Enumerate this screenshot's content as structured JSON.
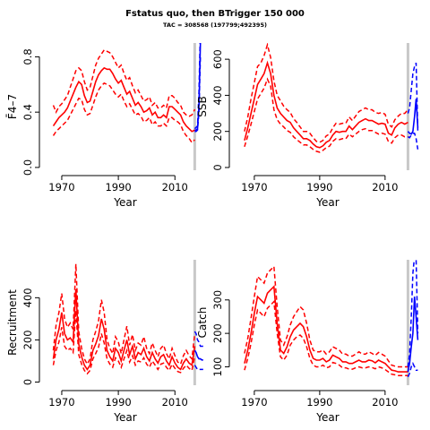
{
  "figure": {
    "title": "Fstatus quo, then BTrigger 150 000",
    "subtitle": "TAC = 308568 (197799;492395)"
  },
  "colors": {
    "historical": "#ff0000",
    "projection": "#0000ff",
    "divider": "#c8c8c8",
    "axis": "#000000"
  },
  "chart_data": [
    {
      "type": "line",
      "name": "fbar",
      "xlabel": "Year",
      "ylabel": "F̄4–7",
      "xlim": [
        1964,
        2021
      ],
      "ylim": [
        -0.02,
        0.9
      ],
      "xticks": [
        1970,
        1990,
        2010
      ],
      "yticks": [
        0.0,
        0.4,
        0.8
      ],
      "yticklabels": [
        "0.0",
        "0.4",
        "0.8"
      ],
      "divider_year": 2017,
      "historical": {
        "x": [
          1967,
          1968,
          1969,
          1970,
          1971,
          1972,
          1973,
          1974,
          1975,
          1976,
          1977,
          1978,
          1979,
          1980,
          1981,
          1982,
          1983,
          1984,
          1985,
          1986,
          1987,
          1988,
          1989,
          1990,
          1991,
          1992,
          1993,
          1994,
          1995,
          1996,
          1997,
          1998,
          1999,
          2000,
          2001,
          2002,
          2003,
          2004,
          2005,
          2006,
          2007,
          2008,
          2009,
          2010,
          2011,
          2012,
          2013,
          2014,
          2015,
          2016,
          2017
        ],
        "median": [
          0.3,
          0.33,
          0.36,
          0.38,
          0.4,
          0.43,
          0.48,
          0.53,
          0.58,
          0.62,
          0.6,
          0.52,
          0.47,
          0.48,
          0.55,
          0.62,
          0.67,
          0.7,
          0.72,
          0.71,
          0.71,
          0.68,
          0.64,
          0.61,
          0.63,
          0.58,
          0.53,
          0.55,
          0.5,
          0.45,
          0.47,
          0.44,
          0.4,
          0.41,
          0.43,
          0.38,
          0.4,
          0.36,
          0.36,
          0.38,
          0.36,
          0.44,
          0.44,
          0.42,
          0.4,
          0.38,
          0.33,
          0.3,
          0.28,
          0.26,
          0.27
        ],
        "low": [
          0.23,
          0.26,
          0.28,
          0.3,
          0.32,
          0.34,
          0.38,
          0.42,
          0.46,
          0.5,
          0.49,
          0.42,
          0.38,
          0.39,
          0.45,
          0.51,
          0.56,
          0.59,
          0.61,
          0.6,
          0.59,
          0.56,
          0.53,
          0.51,
          0.53,
          0.48,
          0.44,
          0.46,
          0.42,
          0.38,
          0.39,
          0.37,
          0.33,
          0.34,
          0.36,
          0.31,
          0.33,
          0.3,
          0.3,
          0.32,
          0.3,
          0.36,
          0.36,
          0.34,
          0.33,
          0.31,
          0.26,
          0.23,
          0.21,
          0.18,
          0.2
        ],
        "high": [
          0.45,
          0.4,
          0.44,
          0.46,
          0.49,
          0.52,
          0.58,
          0.64,
          0.7,
          0.72,
          0.7,
          0.62,
          0.56,
          0.58,
          0.66,
          0.74,
          0.79,
          0.82,
          0.85,
          0.84,
          0.83,
          0.8,
          0.76,
          0.72,
          0.74,
          0.68,
          0.63,
          0.65,
          0.59,
          0.54,
          0.56,
          0.52,
          0.48,
          0.49,
          0.51,
          0.45,
          0.47,
          0.43,
          0.43,
          0.45,
          0.43,
          0.52,
          0.52,
          0.5,
          0.47,
          0.45,
          0.4,
          0.38,
          0.37,
          0.38,
          0.42
        ]
      },
      "projection": {
        "x": [
          2017,
          2017.5,
          2018,
          2018.5,
          2019
        ],
        "median": [
          0.27,
          0.27,
          0.28,
          0.45,
          0.9
        ],
        "low": [
          0.26,
          0.26,
          0.27,
          0.4,
          0.8
        ],
        "high": [
          0.28,
          0.29,
          0.3,
          0.55,
          1.0
        ]
      }
    },
    {
      "type": "line",
      "name": "ssb",
      "xlabel": "Year",
      "ylabel": "SSB",
      "xlim": [
        1964,
        2021
      ],
      "ylim": [
        -15,
        690
      ],
      "xticks": [
        1970,
        1990,
        2010
      ],
      "yticks": [
        0,
        200,
        400,
        600
      ],
      "yticklabels": [
        "0",
        "200",
        "400",
        "600"
      ],
      "divider_year": 2017,
      "historical": {
        "x": [
          1967,
          1968,
          1969,
          1970,
          1971,
          1972,
          1973,
          1974,
          1975,
          1976,
          1977,
          1978,
          1979,
          1980,
          1981,
          1982,
          1983,
          1984,
          1985,
          1986,
          1987,
          1988,
          1989,
          1990,
          1991,
          1992,
          1993,
          1994,
          1995,
          1996,
          1997,
          1998,
          1999,
          2000,
          2001,
          2002,
          2003,
          2004,
          2005,
          2006,
          2007,
          2008,
          2009,
          2010,
          2011,
          2012,
          2013,
          2014,
          2015,
          2016,
          2017
        ],
        "median": [
          150,
          220,
          300,
          380,
          460,
          490,
          520,
          580,
          520,
          400,
          330,
          300,
          280,
          260,
          250,
          220,
          200,
          180,
          160,
          160,
          150,
          130,
          115,
          110,
          120,
          140,
          150,
          180,
          200,
          195,
          200,
          200,
          230,
          210,
          230,
          250,
          260,
          270,
          260,
          260,
          250,
          240,
          245,
          240,
          190,
          180,
          220,
          240,
          250,
          240,
          250
        ],
        "low": [
          115,
          175,
          240,
          310,
          380,
          410,
          440,
          490,
          450,
          320,
          265,
          240,
          225,
          205,
          195,
          170,
          155,
          140,
          125,
          125,
          115,
          100,
          90,
          85,
          95,
          110,
          118,
          145,
          160,
          155,
          160,
          160,
          185,
          170,
          185,
          200,
          210,
          215,
          205,
          205,
          195,
          185,
          190,
          185,
          145,
          135,
          165,
          180,
          180,
          170,
          170
        ],
        "high": [
          200,
          280,
          380,
          470,
          560,
          580,
          620,
          680,
          610,
          480,
          400,
          370,
          340,
          320,
          305,
          270,
          250,
          225,
          200,
          200,
          190,
          165,
          145,
          140,
          150,
          175,
          185,
          220,
          245,
          240,
          245,
          245,
          280,
          260,
          285,
          310,
          320,
          330,
          320,
          320,
          305,
          300,
          305,
          295,
          240,
          225,
          265,
          285,
          300,
          300,
          320
        ]
      },
      "projection": {
        "x": [
          2017,
          2017.5,
          2018,
          2018.5,
          2019,
          2019.5,
          2020
        ],
        "median": [
          200,
          190,
          185,
          200,
          280,
          380,
          220
        ],
        "low": [
          170,
          165,
          180,
          190,
          190,
          160,
          100
        ],
        "high": [
          300,
          330,
          430,
          520,
          560,
          580,
          200
        ]
      }
    },
    {
      "type": "line",
      "name": "recruitment",
      "xlabel": "Year",
      "ylabel": "Recruitment",
      "xlim": [
        1964,
        2021
      ],
      "ylim": [
        -15,
        580
      ],
      "xticks": [
        1970,
        1990,
        2010
      ],
      "yticks": [
        0,
        200,
        400
      ],
      "yticklabels": [
        "0",
        "200",
        "400"
      ],
      "divider_year": 2017,
      "historical": {
        "x": [
          1967,
          1968,
          1969,
          1970,
          1971,
          1972,
          1973,
          1974,
          1975,
          1976,
          1977,
          1978,
          1979,
          1980,
          1981,
          1982,
          1983,
          1984,
          1985,
          1986,
          1987,
          1988,
          1989,
          1990,
          1991,
          1992,
          1993,
          1994,
          1995,
          1996,
          1997,
          1998,
          1999,
          2000,
          2001,
          2002,
          2003,
          2004,
          2005,
          2006,
          2007,
          2008,
          2009,
          2010,
          2011,
          2012,
          2013,
          2014,
          2015,
          2016,
          2017
        ],
        "median": [
          110,
          200,
          250,
          330,
          230,
          200,
          210,
          190,
          440,
          180,
          120,
          80,
          60,
          80,
          150,
          180,
          220,
          300,
          250,
          150,
          120,
          100,
          160,
          140,
          100,
          150,
          200,
          130,
          170,
          110,
          140,
          130,
          160,
          120,
          100,
          140,
          110,
          90,
          120,
          130,
          100,
          80,
          120,
          90,
          70,
          60,
          90,
          110,
          90,
          80,
          170
        ],
        "low": [
          80,
          150,
          190,
          260,
          170,
          150,
          160,
          140,
          340,
          130,
          85,
          55,
          40,
          55,
          110,
          135,
          165,
          230,
          185,
          110,
          85,
          70,
          115,
          100,
          70,
          110,
          150,
          95,
          125,
          80,
          100,
          95,
          115,
          85,
          70,
          100,
          80,
          60,
          85,
          90,
          70,
          55,
          85,
          65,
          50,
          45,
          65,
          80,
          65,
          55,
          120
        ],
        "high": [
          150,
          270,
          330,
          420,
          300,
          260,
          280,
          250,
          560,
          240,
          160,
          110,
          85,
          110,
          200,
          240,
          290,
          390,
          330,
          200,
          160,
          135,
          215,
          190,
          135,
          200,
          265,
          175,
          225,
          150,
          185,
          175,
          215,
          160,
          135,
          185,
          150,
          120,
          160,
          175,
          135,
          110,
          160,
          125,
          95,
          85,
          125,
          150,
          125,
          110,
          230
        ]
      },
      "projection": {
        "x": [
          2017,
          2017.5,
          2018,
          2018.5,
          2019,
          2019.5,
          2020
        ],
        "median": [
          150,
          140,
          120,
          110,
          110,
          105,
          105
        ],
        "low": [
          80,
          70,
          60,
          60,
          60,
          60,
          60
        ],
        "high": [
          240,
          230,
          200,
          190,
          170,
          170,
          170
        ]
      }
    },
    {
      "type": "line",
      "name": "catch",
      "xlabel": "Year",
      "ylabel": "Catch",
      "xlim": [
        1964,
        2021
      ],
      "ylim": [
        45,
        420
      ],
      "xticks": [
        1970,
        1990,
        2010
      ],
      "yticks": [
        100,
        200,
        300
      ],
      "yticklabels": [
        "100",
        "200",
        "300"
      ],
      "divider_year": 2017,
      "historical": {
        "x": [
          1967,
          1968,
          1969,
          1970,
          1971,
          1972,
          1973,
          1974,
          1975,
          1976,
          1977,
          1978,
          1979,
          1980,
          1981,
          1982,
          1983,
          1984,
          1985,
          1986,
          1987,
          1988,
          1989,
          1990,
          1991,
          1992,
          1993,
          1994,
          1995,
          1996,
          1997,
          1998,
          1999,
          2000,
          2001,
          2002,
          2003,
          2004,
          2005,
          2006,
          2007,
          2008,
          2009,
          2010,
          2011,
          2012,
          2013,
          2014,
          2015,
          2016,
          2017
        ],
        "median": [
          110,
          150,
          200,
          260,
          310,
          300,
          290,
          320,
          330,
          340,
          230,
          150,
          140,
          160,
          190,
          210,
          220,
          230,
          220,
          190,
          150,
          125,
          120,
          120,
          125,
          115,
          120,
          135,
          130,
          125,
          115,
          115,
          110,
          110,
          115,
          120,
          115,
          115,
          120,
          118,
          112,
          120,
          115,
          110,
          100,
          90,
          88,
          85,
          85,
          85,
          85
        ],
        "low": [
          90,
          125,
          170,
          225,
          270,
          260,
          250,
          275,
          285,
          295,
          200,
          130,
          120,
          135,
          165,
          180,
          190,
          195,
          185,
          160,
          125,
          105,
          100,
          100,
          105,
          97,
          100,
          113,
          110,
          105,
          97,
          97,
          93,
          93,
          97,
          100,
          97,
          97,
          100,
          98,
          94,
          100,
          97,
          92,
          85,
          78,
          76,
          74,
          74,
          74,
          74
        ],
        "high": [
          140,
          185,
          245,
          310,
          370,
          360,
          350,
          380,
          390,
          400,
          280,
          180,
          165,
          190,
          225,
          250,
          265,
          280,
          270,
          230,
          180,
          150,
          145,
          145,
          150,
          138,
          145,
          160,
          155,
          150,
          138,
          138,
          132,
          132,
          138,
          145,
          138,
          138,
          145,
          140,
          134,
          143,
          138,
          132,
          118,
          105,
          102,
          100,
          100,
          100,
          100
        ]
      },
      "projection": {
        "x": [
          2017,
          2017.5,
          2018,
          2018.5,
          2019,
          2019.5,
          2020
        ],
        "median": [
          85,
          110,
          160,
          200,
          310,
          250,
          180
        ],
        "low": [
          70,
          80,
          100,
          110,
          100,
          90,
          90
        ],
        "high": [
          100,
          140,
          250,
          380,
          430,
          420,
          200
        ]
      }
    }
  ]
}
